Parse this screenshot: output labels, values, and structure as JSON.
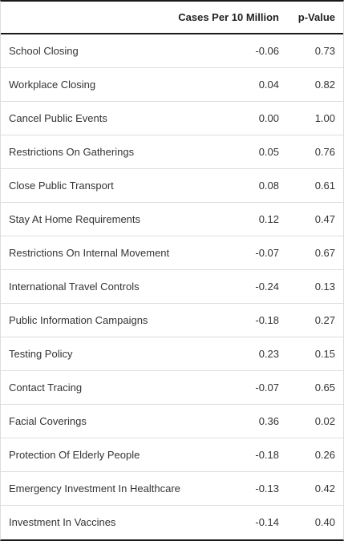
{
  "table": {
    "columns": [
      "",
      "Cases Per 10 Million",
      "p-Value"
    ],
    "rows": [
      {
        "policy": "School Closing",
        "cases": "-0.06",
        "p": "0.73"
      },
      {
        "policy": "Workplace Closing",
        "cases": "0.04",
        "p": "0.82"
      },
      {
        "policy": "Cancel Public Events",
        "cases": "0.00",
        "p": "1.00"
      },
      {
        "policy": "Restrictions On Gatherings",
        "cases": "0.05",
        "p": "0.76"
      },
      {
        "policy": "Close Public Transport",
        "cases": "0.08",
        "p": "0.61"
      },
      {
        "policy": "Stay At Home Requirements",
        "cases": "0.12",
        "p": "0.47"
      },
      {
        "policy": "Restrictions On Internal Movement",
        "cases": "-0.07",
        "p": "0.67"
      },
      {
        "policy": "International Travel Controls",
        "cases": "-0.24",
        "p": "0.13"
      },
      {
        "policy": "Public Information Campaigns",
        "cases": "-0.18",
        "p": "0.27"
      },
      {
        "policy": "Testing Policy",
        "cases": "0.23",
        "p": "0.15"
      },
      {
        "policy": "Contact Tracing",
        "cases": "-0.07",
        "p": "0.65"
      },
      {
        "policy": "Facial Coverings",
        "cases": "0.36",
        "p": "0.02"
      },
      {
        "policy": "Protection Of Elderly People",
        "cases": "-0.18",
        "p": "0.26"
      },
      {
        "policy": "Emergency Investment In Healthcare",
        "cases": "-0.13",
        "p": "0.42"
      },
      {
        "policy": "Investment In Vaccines",
        "cases": "-0.14",
        "p": "0.40"
      }
    ]
  },
  "chart_data": {
    "type": "table",
    "columns": [
      "",
      "Cases Per 10 Million",
      "p-Value"
    ],
    "rows": [
      [
        "School Closing",
        -0.06,
        0.73
      ],
      [
        "Workplace Closing",
        0.04,
        0.82
      ],
      [
        "Cancel Public Events",
        0.0,
        1.0
      ],
      [
        "Restrictions On Gatherings",
        0.05,
        0.76
      ],
      [
        "Close Public Transport",
        0.08,
        0.61
      ],
      [
        "Stay At Home Requirements",
        0.12,
        0.47
      ],
      [
        "Restrictions On Internal Movement",
        -0.07,
        0.67
      ],
      [
        "International Travel Controls",
        -0.24,
        0.13
      ],
      [
        "Public Information Campaigns",
        -0.18,
        0.27
      ],
      [
        "Testing Policy",
        0.23,
        0.15
      ],
      [
        "Contact Tracing",
        -0.07,
        0.65
      ],
      [
        "Facial Coverings",
        0.36,
        0.02
      ],
      [
        "Protection Of Elderly People",
        -0.18,
        0.26
      ],
      [
        "Emergency Investment In Healthcare",
        -0.13,
        0.42
      ],
      [
        "Investment In Vaccines",
        -0.14,
        0.4
      ]
    ]
  }
}
